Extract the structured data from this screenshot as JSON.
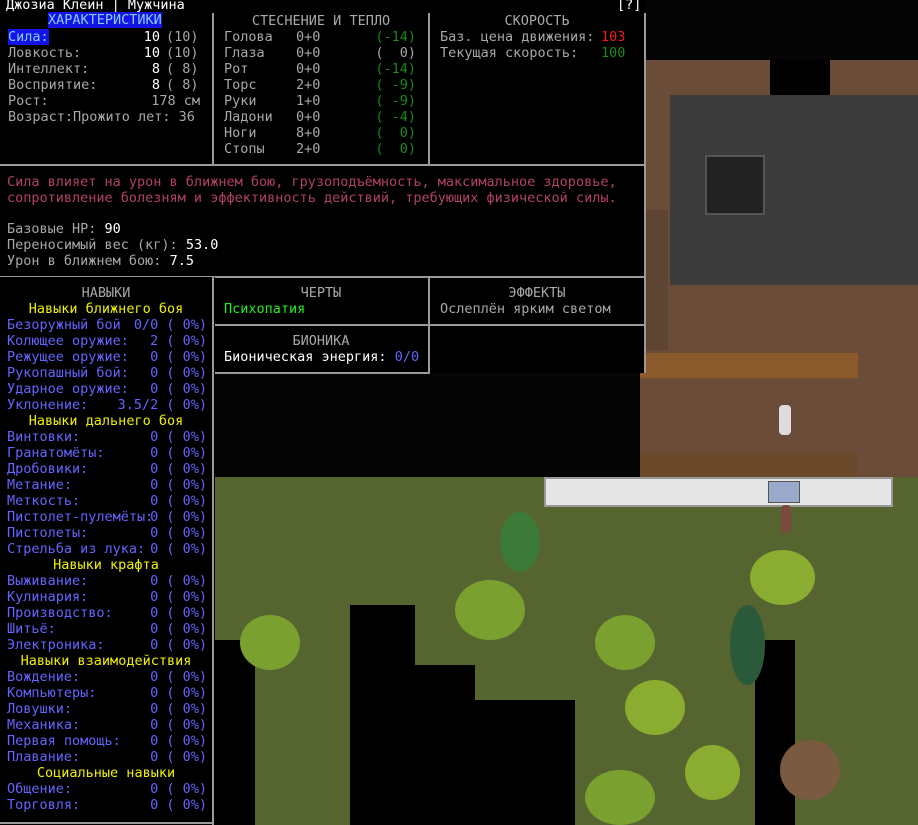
{
  "header": {
    "title": "Джозиа Клейн | Мужчина",
    "help": "[?]"
  },
  "stats": {
    "title": "ХАРАКТЕРИСТИКИ",
    "items": [
      {
        "label": "Сила:",
        "value": "10",
        "base": "(10)",
        "selected": true
      },
      {
        "label": "Ловкость:",
        "value": "10",
        "base": "(10)"
      },
      {
        "label": "Интеллект:",
        "value": "8",
        "base": "( 8)"
      },
      {
        "label": "Восприятие:",
        "value": "8",
        "base": "( 8)"
      }
    ],
    "height_label": "Рост:",
    "height_value": "178 см",
    "age": "Возраст:Прожито лет: 36"
  },
  "encumbrance": {
    "title": "СТЕСНЕНИЕ И ТЕПЛО",
    "rows": [
      {
        "part": "Голова",
        "enc": "0+0",
        "warmth": "(-14)",
        "color": "#1a8a1a"
      },
      {
        "part": "Глаза",
        "enc": "0+0",
        "warmth": "(  0)",
        "color": "#a8a8a8"
      },
      {
        "part": "Рот",
        "enc": "0+0",
        "warmth": "(-14)",
        "color": "#1a8a1a"
      },
      {
        "part": "Торс",
        "enc": "2+0",
        "warmth": "( -9)",
        "color": "#1a8a1a"
      },
      {
        "part": "Руки",
        "enc": "1+0",
        "warmth": "( -9)",
        "color": "#1a8a1a"
      },
      {
        "part": "Ладони",
        "enc": "0+0",
        "warmth": "( -4)",
        "color": "#1a8a1a"
      },
      {
        "part": "Ноги",
        "enc": "8+0",
        "warmth": "(  0)",
        "color": "#1a8a1a"
      },
      {
        "part": "Стопы",
        "enc": "2+0",
        "warmth": "(  0)",
        "color": "#1a8a1a"
      }
    ]
  },
  "speed": {
    "title": "СКОРОСТЬ",
    "move_cost_label": "Баз. цена движения:",
    "move_cost": "103",
    "speed_label": "Текущая скорость:",
    "speed": "100"
  },
  "description": {
    "line1": "Сила влияет на урон в ближнем бою, грузоподъёмность, максимальное здоровье,",
    "line2": "сопротивление болезням и эффективность действий, требующих физической силы.",
    "hp_label": "Базовые HP:",
    "hp": "90",
    "weight_label": "Переносимый вес (кг):",
    "weight": "53.0",
    "melee_label": "Урон в ближнем бою:",
    "melee": "7.5"
  },
  "traits": {
    "title": "ЧЕРТЫ",
    "items": [
      "Психопатия"
    ]
  },
  "effects": {
    "title": "ЭФФЕКТЫ",
    "items": [
      "Ослеплён ярким светом"
    ]
  },
  "bionics": {
    "title": "БИОНИКА",
    "power_label": "Бионическая энергия:",
    "power": "0/0"
  },
  "skills": {
    "title": "НАВЫКИ",
    "groups": [
      {
        "name": "Навыки ближнего боя",
        "items": [
          [
            "Безоружный бой",
            "0/0 ( 0%)"
          ],
          [
            "Колющее оружие:",
            "2 ( 0%)"
          ],
          [
            "Режущее оружие:",
            "0 ( 0%)"
          ],
          [
            "Рукопашный бой:",
            "0 ( 0%)"
          ],
          [
            "Ударное оружие:",
            "0 ( 0%)"
          ],
          [
            "Уклонение:",
            "3.5/2 ( 0%)"
          ]
        ]
      },
      {
        "name": "Навыки дальнего боя",
        "items": [
          [
            "Винтовки:",
            "0 ( 0%)"
          ],
          [
            "Гранатомёты:",
            "0 ( 0%)"
          ],
          [
            "Дробовики:",
            "0 ( 0%)"
          ],
          [
            "Метание:",
            "0 ( 0%)"
          ],
          [
            "Меткость:",
            "0 ( 0%)"
          ],
          [
            "Пистолет-пулемёты:",
            "0 ( 0%)"
          ],
          [
            "Пистолеты:",
            "0 ( 0%)"
          ],
          [
            "Стрельба из лука:",
            "0 ( 0%)"
          ]
        ]
      },
      {
        "name": "Навыки крафта",
        "items": [
          [
            "Выживание:",
            "0 ( 0%)"
          ],
          [
            "Кулинария:",
            "0 ( 0%)"
          ],
          [
            "Производство:",
            "0 ( 0%)"
          ],
          [
            "Шитьё:",
            "0 ( 0%)"
          ],
          [
            "Электроника:",
            "0 ( 0%)"
          ]
        ]
      },
      {
        "name": "Навыки взаимодействия",
        "items": [
          [
            "Вождение:",
            "0 ( 0%)"
          ],
          [
            "Компьютеры:",
            "0 ( 0%)"
          ],
          [
            "Ловушки:",
            "0 ( 0%)"
          ],
          [
            "Механика:",
            "0 ( 0%)"
          ],
          [
            "Первая помощь:",
            "0 ( 0%)"
          ],
          [
            "Плавание:",
            "0 ( 0%)"
          ]
        ]
      },
      {
        "name": "Социальные навыки",
        "items": [
          [
            "Общение:",
            "0 ( 0%)"
          ],
          [
            "Торговля:",
            "0 ( 0%)"
          ]
        ]
      }
    ]
  }
}
